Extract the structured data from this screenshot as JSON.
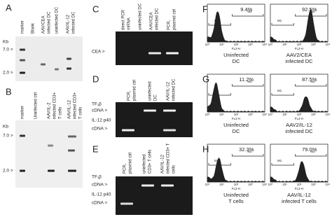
{
  "panels": {
    "A": {
      "label": "A",
      "lanes": [
        [
          "marker"
        ],
        [
          "Blank"
        ],
        [
          "AAV/CEA",
          "infected DC"
        ],
        [
          "uninfected DC"
        ],
        [
          "AAV/IL-12",
          "infected DC"
        ]
      ],
      "rows": [
        "Kb",
        "7.0 >",
        "2.0 >"
      ]
    },
    "B": {
      "label": "B",
      "lanes": [
        [
          "marker"
        ],
        [
          "Uninfected ctrl"
        ],
        [
          "AAV/IL-2",
          "infected CD3+",
          "T cells"
        ],
        [
          "AAV/IL-12",
          "infected CD3+",
          "T cells"
        ]
      ],
      "rows": [
        "Kb",
        "7.0 >",
        "2.0 >"
      ]
    },
    "C": {
      "label": "C",
      "lanes": [
        [
          "direct PCR",
          "mRNA"
        ],
        [
          "uninfected DC"
        ],
        [
          "AAV/CEA",
          "infected DC"
        ],
        [
          "PCR,",
          "plasmid ctrl"
        ]
      ],
      "rows": [
        "CEA >"
      ]
    },
    "D": {
      "label": "D",
      "lanes": [
        [
          "PCR,",
          "plasmid ctrl"
        ],
        [
          "uninfected",
          "DC"
        ],
        [
          "AAV/IL-12",
          "infected DC"
        ]
      ],
      "rows": [
        "TF₁β",
        "cDNA >",
        "IL-12 p40",
        "cDNA >"
      ]
    },
    "E": {
      "label": "E",
      "lanes": [
        [
          "PCR,",
          "plasmid ctrl"
        ],
        [
          "uninfected",
          "CD3+ T cells"
        ],
        [
          "AAV/IL-12",
          "infected CD3+ T",
          "cells"
        ]
      ],
      "rows": [
        "TF₁β",
        "cDNA >",
        "IL-12 p40",
        "cDNA >"
      ]
    },
    "F": {
      "label": "F",
      "histograms": [
        {
          "percent": "9.4%",
          "caption": [
            "Uninfected",
            "DC"
          ]
        },
        {
          "percent": "92.5%",
          "caption": [
            "AAV2/CEA",
            "infected DC"
          ]
        }
      ]
    },
    "G": {
      "label": "G",
      "histograms": [
        {
          "percent": "11.2%",
          "caption": [
            "Uninfected",
            "DC"
          ]
        },
        {
          "percent": "87.5%",
          "caption": [
            "AAV2/IL-12",
            "infected DC"
          ]
        }
      ]
    },
    "H": {
      "label": "H",
      "histograms": [
        {
          "percent": "32.3%",
          "caption": [
            "Uninfected",
            "T cells"
          ]
        },
        {
          "percent": "79.0%",
          "caption": [
            "AAV/IL-12",
            "infected T cells"
          ]
        }
      ]
    }
  },
  "flow": {
    "gates": [
      "M1",
      "M2"
    ],
    "axis_label": "FL2-H",
    "ticks": [
      "10⁰",
      "10¹",
      "10²",
      "10³",
      "10⁴"
    ]
  }
}
